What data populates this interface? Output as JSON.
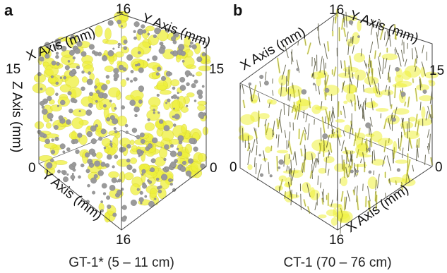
{
  "colors": {
    "inclusion": "#eef03a",
    "inclusion_edge": "#c8c22a",
    "sphere": "#9a9a9a",
    "fiber": "#4a4a30"
  },
  "panels": [
    {
      "letter": "a",
      "x_label": "X Axis (mm)",
      "y_label_top": "Y Axis (mm)",
      "z_label": "Z Axis (mm)",
      "y_label_bottom": "Y Axis (mm)",
      "ticks": {
        "top": "16",
        "right": "15",
        "left": "15",
        "left_zero": "0",
        "right_zero": "0",
        "bottom": "16"
      },
      "caption": "GT-1* (5 – 11 cm)"
    },
    {
      "letter": "b",
      "x_label": "X Axis (mm)",
      "y_label_top": "Y Axis (mm)",
      "x_label_bottom": "X Axis (mm)",
      "ticks": {
        "top": "16",
        "right": "15",
        "left_zero": "0",
        "right_zero": "0",
        "bottom": "16"
      },
      "caption": "CT-1 (70 – 76 cm)"
    }
  ]
}
